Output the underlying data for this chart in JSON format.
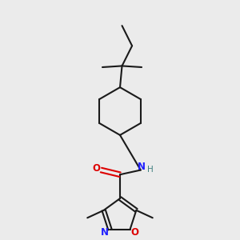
{
  "bg_color": "#ebebeb",
  "bond_color": "#1a1a1a",
  "n_color": "#2020ff",
  "o_color": "#dd0000",
  "h_color": "#408080",
  "line_width": 1.5,
  "figsize": [
    3.0,
    3.0
  ],
  "dpi": 100,
  "xlim": [
    0.15,
    0.85
  ],
  "ylim": [
    0.02,
    0.97
  ]
}
